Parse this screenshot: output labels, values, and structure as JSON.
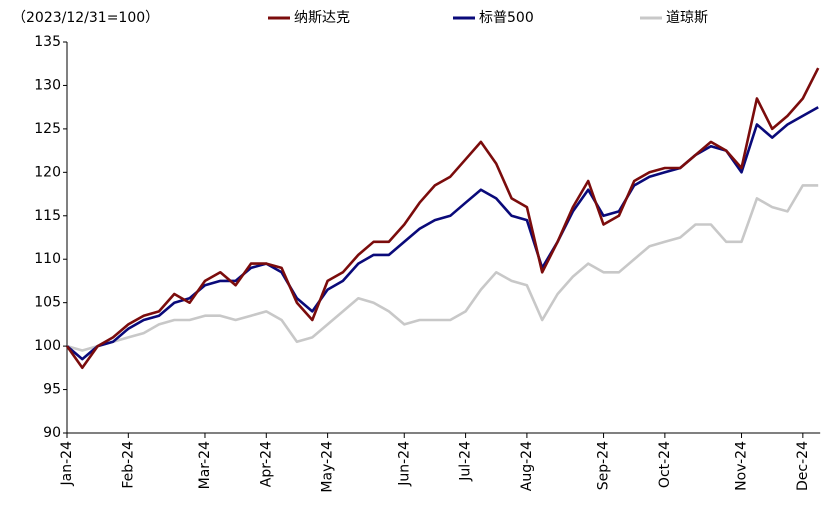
{
  "chart_data": {
    "type": "line",
    "subtitle": "（2023/12/31=100）",
    "categories": [
      "Jan-24",
      null,
      null,
      null,
      "Feb-24",
      null,
      null,
      null,
      null,
      "Mar-24",
      null,
      null,
      null,
      "Apr-24",
      null,
      null,
      null,
      "May-24",
      null,
      null,
      null,
      null,
      "Jun-24",
      null,
      null,
      null,
      "Jul-24",
      null,
      null,
      null,
      "Aug-24",
      null,
      null,
      null,
      null,
      "Sep-24",
      null,
      null,
      null,
      "Oct-24",
      null,
      null,
      null,
      null,
      "Nov-24",
      null,
      null,
      null,
      "Dec-24",
      null
    ],
    "series": [
      {
        "name": "纳斯达克",
        "color": "#7b0c0c",
        "values": [
          100,
          97.5,
          100,
          101,
          102.5,
          103.5,
          104,
          106,
          105,
          107.5,
          108.5,
          107,
          109.5,
          109.5,
          109,
          105,
          103,
          107.5,
          108.5,
          110.5,
          112,
          112,
          114,
          116.5,
          118.5,
          119.5,
          121.5,
          123.5,
          121,
          117,
          116,
          108.5,
          112,
          116,
          119,
          114,
          115,
          119,
          120,
          120.5,
          120.5,
          122,
          123.5,
          122.5,
          120.5,
          128.5,
          125,
          126.5,
          128.5,
          132
        ]
      },
      {
        "name": "标普500",
        "color": "#0a0a7a",
        "values": [
          100,
          98.5,
          100,
          100.5,
          102,
          103,
          103.5,
          105,
          105.5,
          107,
          107.5,
          107.5,
          109,
          109.5,
          108.5,
          105.5,
          104,
          106.5,
          107.5,
          109.5,
          110.5,
          110.5,
          112,
          113.5,
          114.5,
          115,
          116.5,
          118,
          117,
          115,
          114.5,
          109,
          112,
          115.5,
          118,
          115,
          115.5,
          118.5,
          119.5,
          120,
          120.5,
          122,
          123,
          122.5,
          120,
          125.5,
          124,
          125.5,
          126.5,
          127.5
        ]
      },
      {
        "name": "道琼斯",
        "color": "#c8c8c8",
        "values": [
          100,
          99.5,
          100,
          100.5,
          101,
          101.5,
          102.5,
          103,
          103,
          103.5,
          103.5,
          103,
          103.5,
          104,
          103,
          100.5,
          101,
          102.5,
          104,
          105.5,
          105,
          104,
          102.5,
          103,
          103,
          103,
          104,
          106.5,
          108.5,
          107.5,
          107,
          103,
          106,
          108,
          109.5,
          108.5,
          108.5,
          110,
          111.5,
          112,
          112.5,
          114,
          114,
          112,
          112,
          117,
          116,
          115.5,
          118.5,
          118.5
        ]
      }
    ],
    "ylim": [
      90,
      135
    ],
    "yticks": [
      90,
      95,
      100,
      105,
      110,
      115,
      120,
      125,
      130,
      135
    ],
    "grid": false
  }
}
